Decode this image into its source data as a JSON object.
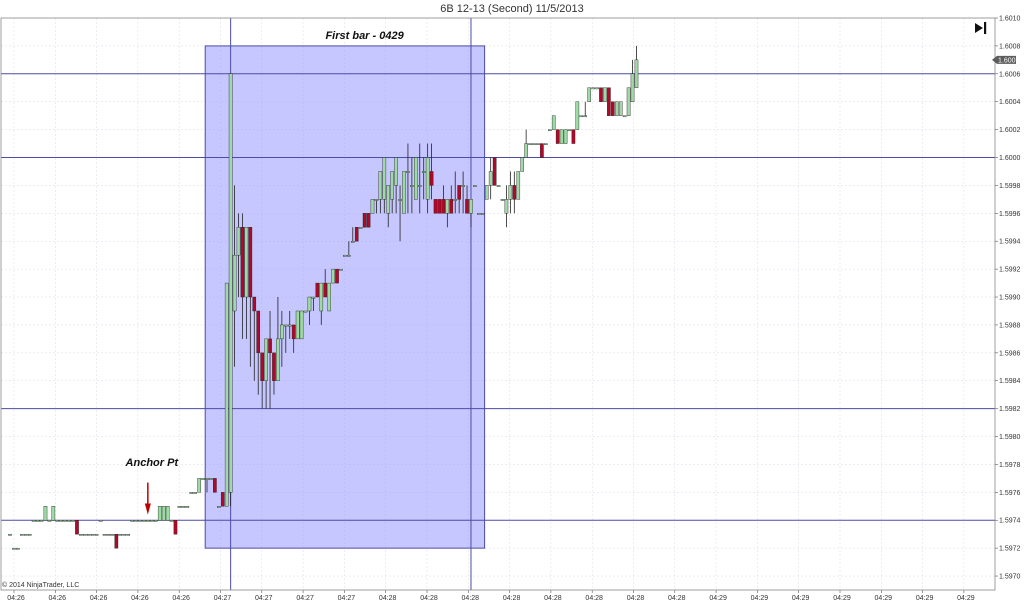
{
  "window": {
    "title": "6B 12-13 (Second)  11/5/2013",
    "copyright": "© 2014 NinjaTrader, LLC",
    "go_to_end_icon": "skip-to-end-icon"
  },
  "colors": {
    "up_fill": "#9fd9a5",
    "down_fill": "#b00828",
    "wick": "#222222",
    "grid": "#d9d9e6",
    "hline": "#4b4ba8",
    "rect_fill": "#9090ff",
    "rect_stroke": "#4b4ba8",
    "price_marker_bg": "#5c5c5c"
  },
  "chart_data": {
    "type": "candlestick",
    "symbol": "6B 12-13",
    "interval": "Second",
    "date": "11/5/2013",
    "ylim": [
      1.5969,
      1.601
    ],
    "y_ticks": [
      "1.5970",
      "1.5972",
      "1.5974",
      "1.5976",
      "1.5978",
      "1.5980",
      "1.5982",
      "1.5984",
      "1.5986",
      "1.5988",
      "1.5990",
      "1.5992",
      "1.5994",
      "1.5996",
      "1.5998",
      "1.6000",
      "1.6002",
      "1.6004",
      "1.6006",
      "1.6008",
      "1.6010"
    ],
    "x_ticks": [
      "04:26",
      "04:26",
      "04:26",
      "04:26",
      "04:26",
      "04:27",
      "04:27",
      "04:27",
      "04:27",
      "04:28",
      "04:28",
      "04:28",
      "04:28",
      "04:28",
      "04:28",
      "04:28",
      "04:28",
      "04:29",
      "04:29",
      "04:29",
      "04:29",
      "04:29",
      "04:29",
      "04:29"
    ],
    "last_price": "1.6007",
    "horizontal_lines": [
      1.5974,
      1.5982,
      1.6,
      1.6006
    ],
    "vertical_line_index": [
      56,
      117
    ],
    "highlight_rect": {
      "x_start": 50,
      "x_end": 120,
      "y_low": 1.5972,
      "y_high": 1.6008
    },
    "annotations": [
      {
        "text": "First bar - 0429",
        "x": 90,
        "y": 1.60085
      },
      {
        "text": "Anchor Pt",
        "x": 36,
        "y": 1.59779
      }
    ],
    "candles": [
      [
        1.5973,
        1.5973,
        1.5973,
        1.5973
      ],
      [
        1.5972,
        1.5972,
        1.5972,
        1.5972
      ],
      [
        1.5972,
        1.5972,
        1.5972,
        1.5972
      ],
      [
        1.5973,
        1.5973,
        1.5973,
        1.5973
      ],
      [
        1.5973,
        1.5973,
        1.5973,
        1.5973
      ],
      [
        1.5973,
        1.5973,
        1.5973,
        1.5973
      ],
      [
        1.5974,
        1.5974,
        1.5974,
        1.5974
      ],
      [
        1.5974,
        1.5974,
        1.5974,
        1.5974
      ],
      [
        1.5974,
        1.5974,
        1.5974,
        1.5974
      ],
      [
        1.5974,
        1.5975,
        1.5974,
        1.5975
      ],
      [
        1.5974,
        1.5974,
        1.5974,
        1.5974
      ],
      [
        1.5974,
        1.5975,
        1.5974,
        1.5975
      ],
      [
        1.5974,
        1.5974,
        1.5974,
        1.5974
      ],
      [
        1.5974,
        1.5974,
        1.5974,
        1.5974
      ],
      [
        1.5974,
        1.5974,
        1.5974,
        1.5974
      ],
      [
        1.5974,
        1.5974,
        1.5974,
        1.5974
      ],
      [
        1.5974,
        1.5974,
        1.5974,
        1.5974
      ],
      [
        1.5974,
        1.5974,
        1.5973,
        1.5973
      ],
      [
        1.5973,
        1.5973,
        1.5973,
        1.5973
      ],
      [
        1.5973,
        1.5973,
        1.5973,
        1.5973
      ],
      [
        1.5973,
        1.5973,
        1.5973,
        1.5973
      ],
      [
        1.5973,
        1.5973,
        1.5973,
        1.5973
      ],
      [
        1.5973,
        1.5973,
        1.5973,
        1.5973
      ],
      [
        1.5974,
        1.5974,
        1.5974,
        1.5974
      ],
      [
        1.5973,
        1.5973,
        1.5973,
        1.5973
      ],
      [
        1.5973,
        1.5973,
        1.5973,
        1.5973
      ],
      [
        1.5973,
        1.5973,
        1.5973,
        1.5973
      ],
      [
        1.5973,
        1.5973,
        1.5972,
        1.5972
      ],
      [
        1.5973,
        1.5973,
        1.5973,
        1.5973
      ],
      [
        1.5973,
        1.5973,
        1.5973,
        1.5973
      ],
      [
        1.5973,
        1.5973,
        1.5973,
        1.5973
      ],
      [
        1.5974,
        1.5974,
        1.5974,
        1.5974
      ],
      [
        1.5974,
        1.5974,
        1.5974,
        1.5974
      ],
      [
        1.5974,
        1.5974,
        1.5974,
        1.5974
      ],
      [
        1.5974,
        1.5974,
        1.5974,
        1.5974
      ],
      [
        1.5974,
        1.5974,
        1.5974,
        1.5974
      ],
      [
        1.5974,
        1.5974,
        1.5974,
        1.5974
      ],
      [
        1.5974,
        1.5974,
        1.5974,
        1.5974
      ],
      [
        1.5974,
        1.5975,
        1.5974,
        1.5975
      ],
      [
        1.5974,
        1.5975,
        1.5974,
        1.5975
      ],
      [
        1.5974,
        1.5975,
        1.5974,
        1.5975
      ],
      [
        1.5974,
        1.5974,
        1.5974,
        1.5974
      ],
      [
        1.5974,
        1.5974,
        1.5973,
        1.5973
      ],
      [
        1.5975,
        1.5975,
        1.5975,
        1.5975
      ],
      [
        1.5975,
        1.5975,
        1.5975,
        1.5975
      ],
      [
        1.5975,
        1.5975,
        1.5975,
        1.5975
      ],
      [
        1.5976,
        1.5976,
        1.5976,
        1.5976
      ],
      [
        1.5976,
        1.5976,
        1.5976,
        1.5976
      ],
      [
        1.5976,
        1.5977,
        1.5976,
        1.5977
      ],
      [
        1.5977,
        1.5977,
        1.5977,
        1.5977
      ],
      [
        1.5977,
        1.5977,
        1.5976,
        1.5977
      ],
      [
        1.5977,
        1.5977,
        1.5977,
        1.5977
      ],
      [
        1.5977,
        1.5977,
        1.5976,
        1.5976
      ],
      [
        1.5975,
        1.5975,
        1.5975,
        1.5975
      ],
      [
        1.5976,
        1.5976,
        1.5975,
        1.5975
      ],
      [
        1.5975,
        1.5991,
        1.5975,
        1.5991
      ],
      [
        1.5976,
        1.6006,
        1.5975,
        1.6006
      ],
      [
        1.5989,
        1.5998,
        1.5985,
        1.5993
      ],
      [
        1.5993,
        1.5996,
        1.599,
        1.5995
      ],
      [
        1.5995,
        1.5996,
        1.5987,
        1.599
      ],
      [
        1.599,
        1.5995,
        1.5987,
        1.5995
      ],
      [
        1.5995,
        1.5995,
        1.5985,
        1.599
      ],
      [
        1.599,
        1.599,
        1.5984,
        1.5989
      ],
      [
        1.5989,
        1.5989,
        1.5983,
        1.5986
      ],
      [
        1.5986,
        1.5986,
        1.5982,
        1.5984
      ],
      [
        1.5984,
        1.5987,
        1.5982,
        1.5987
      ],
      [
        1.5987,
        1.5989,
        1.5982,
        1.5986
      ],
      [
        1.5986,
        1.5986,
        1.5983,
        1.5984
      ],
      [
        1.5984,
        1.599,
        1.5984,
        1.5987
      ],
      [
        1.5987,
        1.5989,
        1.5985,
        1.5988
      ],
      [
        1.5988,
        1.5988,
        1.5986,
        1.5988
      ],
      [
        1.5988,
        1.5989,
        1.5987,
        1.5988
      ],
      [
        1.5988,
        1.5988,
        1.5986,
        1.5987
      ],
      [
        1.5987,
        1.5989,
        1.5987,
        1.5989
      ],
      [
        1.5987,
        1.5989,
        1.5987,
        1.5989
      ],
      [
        1.5989,
        1.5989,
        1.5989,
        1.5989
      ],
      [
        1.5989,
        1.599,
        1.5988,
        1.599
      ],
      [
        1.599,
        1.599,
        1.5989,
        1.599
      ],
      [
        1.5991,
        1.5991,
        1.599,
        1.599
      ],
      [
        1.5989,
        1.5991,
        1.5988,
        1.5991
      ],
      [
        1.5991,
        1.5992,
        1.599,
        1.599
      ],
      [
        1.5989,
        1.5991,
        1.5989,
        1.5991
      ],
      [
        1.5991,
        1.5992,
        1.5991,
        1.5992
      ],
      [
        1.5992,
        1.5992,
        1.5991,
        1.5991
      ],
      [
        1.5992,
        1.5992,
        1.5992,
        1.5992
      ],
      [
        1.5993,
        1.5993,
        1.5993,
        1.5993
      ],
      [
        1.5993,
        1.5994,
        1.5993,
        1.5993
      ],
      [
        1.5994,
        1.5995,
        1.5994,
        1.5994
      ],
      [
        1.5995,
        1.5995,
        1.5994,
        1.5994
      ],
      [
        1.5995,
        1.5995,
        1.5995,
        1.5995
      ],
      [
        1.5996,
        1.5996,
        1.5995,
        1.5995
      ],
      [
        1.5996,
        1.5996,
        1.5995,
        1.5995
      ],
      [
        1.5996,
        1.5997,
        1.5996,
        1.5997
      ],
      [
        1.5997,
        1.5997,
        1.5996,
        1.5997
      ],
      [
        1.5997,
        1.5999,
        1.5996,
        1.5999
      ],
      [
        1.5997,
        1.6,
        1.5996,
        1.6
      ],
      [
        1.5996,
        1.5998,
        1.5995,
        1.5998
      ],
      [
        1.5997,
        1.5999,
        1.5996,
        1.5999
      ],
      [
        1.5998,
        1.6,
        1.5996,
        1.6
      ],
      [
        1.5997,
        1.5998,
        1.5994,
        1.5997
      ],
      [
        1.5996,
        1.5999,
        1.5996,
        1.5999
      ],
      [
        1.5999,
        1.6001,
        1.5996,
        1.5999
      ],
      [
        1.5998,
        1.6,
        1.5996,
        1.5998
      ],
      [
        1.5997,
        1.6,
        1.5997,
        1.6
      ],
      [
        1.5998,
        1.6001,
        1.5996,
        1.5998
      ],
      [
        1.5999,
        1.6,
        1.5997,
        1.5999
      ],
      [
        1.5997,
        1.6001,
        1.5996,
        1.6
      ],
      [
        1.5999,
        1.6001,
        1.5997,
        1.5998
      ],
      [
        1.5997,
        1.5997,
        1.5996,
        1.5996
      ],
      [
        1.5997,
        1.5997,
        1.5996,
        1.5996
      ],
      [
        1.5997,
        1.5998,
        1.5996,
        1.5996
      ],
      [
        1.5996,
        1.5997,
        1.5995,
        1.5997
      ],
      [
        1.5997,
        1.5998,
        1.5996,
        1.5996
      ],
      [
        1.5997,
        1.5999,
        1.5996,
        1.5997
      ],
      [
        1.5998,
        1.5998,
        1.5996,
        1.5997
      ],
      [
        1.5998,
        1.5999,
        1.5996,
        1.5998
      ],
      [
        1.5997,
        1.5998,
        1.5996,
        1.5996
      ],
      [
        1.5996,
        1.5997,
        1.5995,
        1.5997
      ],
      [
        1.5998,
        1.5998,
        1.5998,
        1.5998
      ],
      [
        1.5996,
        1.5996,
        1.5996,
        1.5996
      ],
      [
        1.5996,
        1.5996,
        1.5996,
        1.5996
      ],
      [
        1.5997,
        1.5998,
        1.5997,
        1.5998
      ],
      [
        1.5998,
        1.6,
        1.5997,
        1.5999
      ],
      [
        1.6,
        1.6,
        1.5998,
        1.5998
      ],
      [
        1.5998,
        1.5998,
        1.5998,
        1.5998
      ],
      [
        1.5997,
        1.5997,
        1.5997,
        1.5997
      ],
      [
        1.5996,
        1.5998,
        1.5995,
        1.5997
      ],
      [
        1.5997,
        1.5999,
        1.5996,
        1.5998
      ],
      [
        1.5998,
        1.5999,
        1.5996,
        1.5997
      ],
      [
        1.5997,
        1.5999,
        1.5997,
        1.5999
      ],
      [
        1.5999,
        1.6,
        1.5999,
        1.6
      ],
      [
        1.6,
        1.6002,
        1.6,
        1.6001
      ],
      [
        1.6001,
        1.6001,
        1.6001,
        1.6001
      ],
      [
        1.6001,
        1.6001,
        1.6001,
        1.6001
      ],
      [
        1.6001,
        1.6001,
        1.6001,
        1.6001
      ],
      [
        1.6001,
        1.6001,
        1.6,
        1.6
      ],
      [
        1.6001,
        1.6001,
        1.6001,
        1.6001
      ],
      [
        1.6002,
        1.6002,
        1.6002,
        1.6002
      ],
      [
        1.6002,
        1.6003,
        1.6002,
        1.6003
      ],
      [
        1.6002,
        1.6002,
        1.6001,
        1.6001
      ],
      [
        1.6001,
        1.6002,
        1.6001,
        1.6002
      ],
      [
        1.6001,
        1.6002,
        1.6001,
        1.6002
      ],
      [
        1.6002,
        1.6002,
        1.6002,
        1.6002
      ],
      [
        1.6002,
        1.6002,
        1.6001,
        1.6001
      ],
      [
        1.6002,
        1.6004,
        1.6002,
        1.6004
      ],
      [
        1.6003,
        1.6003,
        1.6003,
        1.6003
      ],
      [
        1.6003,
        1.6004,
        1.6003,
        1.6003
      ],
      [
        1.6004,
        1.6005,
        1.6004,
        1.6005
      ],
      [
        1.6005,
        1.6005,
        1.6005,
        1.6005
      ],
      [
        1.6005,
        1.6005,
        1.6005,
        1.6005
      ],
      [
        1.6005,
        1.6005,
        1.6004,
        1.6004
      ],
      [
        1.6004,
        1.6005,
        1.6004,
        1.6005
      ],
      [
        1.6005,
        1.6005,
        1.6003,
        1.6003
      ],
      [
        1.6004,
        1.6004,
        1.6003,
        1.6003
      ],
      [
        1.6003,
        1.6004,
        1.6003,
        1.6004
      ],
      [
        1.6003,
        1.6004,
        1.6003,
        1.6004
      ],
      [
        1.6003,
        1.6003,
        1.6003,
        1.6003
      ],
      [
        1.6003,
        1.6005,
        1.6003,
        1.6005
      ],
      [
        1.6004,
        1.6007,
        1.6004,
        1.6006
      ],
      [
        1.6005,
        1.6008,
        1.6005,
        1.6007
      ]
    ]
  }
}
